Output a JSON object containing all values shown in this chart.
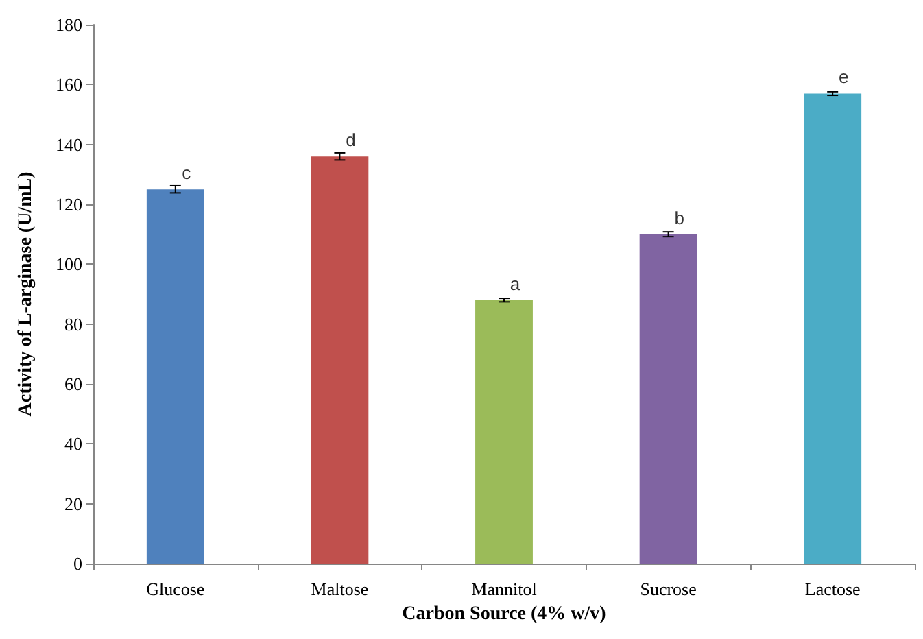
{
  "chart_data": {
    "type": "bar",
    "xlabel": "Carbon Source (4% w/v)",
    "ylabel": "Activity of L-arginase (U/mL)",
    "categories": [
      "Glucose",
      "Maltose",
      "Mannitol",
      "Sucrose",
      "Lactose"
    ],
    "values": [
      125,
      136,
      88,
      110,
      157
    ],
    "colors": [
      "#4f81bd",
      "#c0504d",
      "#9bbb59",
      "#8064a2",
      "#4bacc6"
    ],
    "errors": [
      1.2,
      1.2,
      0.6,
      0.8,
      0.6
    ],
    "ylim": [
      0,
      180
    ],
    "yticks": [
      0,
      20,
      40,
      60,
      80,
      100,
      120,
      140,
      160,
      180
    ],
    "grid": false,
    "annotations": [
      {
        "text": "c",
        "x": "Glucose",
        "y": 125
      },
      {
        "text": "d",
        "x": "Maltose",
        "y": 136
      },
      {
        "text": "a",
        "x": "Mannitol",
        "y": 88
      },
      {
        "text": "b",
        "x": "Sucrose",
        "y": 110
      },
      {
        "text": "e",
        "x": "Lactose",
        "y": 157
      }
    ]
  }
}
